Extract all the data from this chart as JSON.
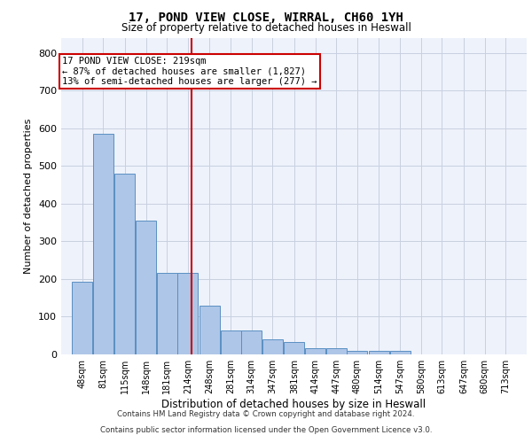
{
  "title1": "17, POND VIEW CLOSE, WIRRAL, CH60 1YH",
  "title2": "Size of property relative to detached houses in Heswall",
  "xlabel": "Distribution of detached houses by size in Heswall",
  "ylabel": "Number of detached properties",
  "bin_labels": [
    "48sqm",
    "81sqm",
    "115sqm",
    "148sqm",
    "181sqm",
    "214sqm",
    "248sqm",
    "281sqm",
    "314sqm",
    "347sqm",
    "381sqm",
    "414sqm",
    "447sqm",
    "480sqm",
    "514sqm",
    "547sqm",
    "580sqm",
    "613sqm",
    "647sqm",
    "680sqm",
    "713sqm"
  ],
  "bar_values": [
    192,
    585,
    480,
    355,
    215,
    215,
    130,
    63,
    63,
    40,
    33,
    17,
    17,
    10,
    10,
    10,
    0,
    0,
    0,
    0,
    0
  ],
  "bar_color": "#aec6e8",
  "bar_edge_color": "#5a8fc2",
  "grid_color": "#c8d0e0",
  "background_color": "#eef2fb",
  "vline_x": 219,
  "vline_color": "#cc0000",
  "annotation_line1": "17 POND VIEW CLOSE: 219sqm",
  "annotation_line2": "← 87% of detached houses are smaller (1,827)",
  "annotation_line3": "13% of semi-detached houses are larger (277) →",
  "annotation_box_color": "#ffffff",
  "annotation_box_edge": "#cc0000",
  "ylim": [
    0,
    840
  ],
  "yticks": [
    0,
    100,
    200,
    300,
    400,
    500,
    600,
    700,
    800
  ],
  "bin_width": 33,
  "footer1": "Contains HM Land Registry data © Crown copyright and database right 2024.",
  "footer2": "Contains public sector information licensed under the Open Government Licence v3.0."
}
